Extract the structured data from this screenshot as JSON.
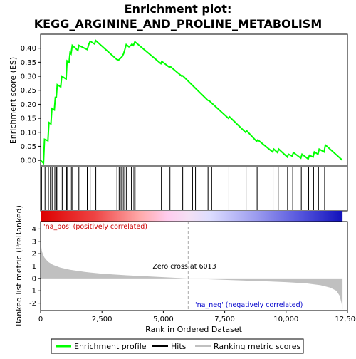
{
  "title_line1": "Enrichment plot:",
  "title_line2": "KEGG_ARGININE_AND_PROLINE_METABOLISM",
  "chart_data": {
    "type": "line",
    "es_panel": {
      "ylabel": "Enrichment score (ES)",
      "ylim": [
        -0.02,
        0.45
      ],
      "yticks": [
        0.0,
        0.05,
        0.1,
        0.15,
        0.2,
        0.25,
        0.3,
        0.35,
        0.4
      ],
      "ytick_labels": [
        "0.00",
        "0.05",
        "0.10",
        "0.15",
        "0.20",
        "0.25",
        "0.30",
        "0.35",
        "0.40"
      ],
      "series_name": "Enrichment profile",
      "color": "#00ff00",
      "points": [
        [
          0,
          0.0
        ],
        [
          120,
          -0.01
        ],
        [
          160,
          0.075
        ],
        [
          300,
          0.07
        ],
        [
          340,
          0.135
        ],
        [
          420,
          0.13
        ],
        [
          460,
          0.185
        ],
        [
          560,
          0.18
        ],
        [
          600,
          0.225
        ],
        [
          640,
          0.225
        ],
        [
          680,
          0.27
        ],
        [
          820,
          0.262
        ],
        [
          860,
          0.3
        ],
        [
          1040,
          0.29
        ],
        [
          1080,
          0.355
        ],
        [
          1160,
          0.35
        ],
        [
          1200,
          0.385
        ],
        [
          1240,
          0.38
        ],
        [
          1290,
          0.41
        ],
        [
          1520,
          0.392
        ],
        [
          1560,
          0.41
        ],
        [
          1900,
          0.395
        ],
        [
          1960,
          0.413
        ],
        [
          2020,
          0.425
        ],
        [
          2200,
          0.415
        ],
        [
          2240,
          0.428
        ],
        [
          3100,
          0.36
        ],
        [
          3180,
          0.358
        ],
        [
          3260,
          0.365
        ],
        [
          3320,
          0.37
        ],
        [
          3380,
          0.38
        ],
        [
          3430,
          0.395
        ],
        [
          3490,
          0.413
        ],
        [
          3600,
          0.405
        ],
        [
          3680,
          0.41
        ],
        [
          3720,
          0.415
        ],
        [
          3780,
          0.41
        ],
        [
          3840,
          0.423
        ],
        [
          4900,
          0.345
        ],
        [
          4940,
          0.353
        ],
        [
          5250,
          0.332
        ],
        [
          5280,
          0.335
        ],
        [
          5750,
          0.3
        ],
        [
          5790,
          0.302
        ],
        [
          6180,
          0.268
        ],
        [
          6300,
          0.258
        ],
        [
          6800,
          0.215
        ],
        [
          6880,
          0.212
        ],
        [
          6960,
          0.205
        ],
        [
          7650,
          0.15
        ],
        [
          7700,
          0.155
        ],
        [
          8350,
          0.1
        ],
        [
          8400,
          0.105
        ],
        [
          8800,
          0.068
        ],
        [
          8850,
          0.073
        ],
        [
          9450,
          0.03
        ],
        [
          9500,
          0.04
        ],
        [
          9650,
          0.028
        ],
        [
          9700,
          0.04
        ],
        [
          10050,
          0.012
        ],
        [
          10100,
          0.022
        ],
        [
          10250,
          0.015
        ],
        [
          10300,
          0.028
        ],
        [
          10600,
          0.008
        ],
        [
          10650,
          0.022
        ],
        [
          10900,
          0.005
        ],
        [
          10950,
          0.018
        ],
        [
          11100,
          0.012
        ],
        [
          11150,
          0.03
        ],
        [
          11300,
          0.022
        ],
        [
          11350,
          0.04
        ],
        [
          11550,
          0.03
        ],
        [
          11600,
          0.055
        ],
        [
          12300,
          0.0
        ]
      ]
    },
    "hits": [
      40,
      180,
      320,
      400,
      470,
      580,
      650,
      700,
      880,
      1060,
      1100,
      1210,
      1270,
      1310,
      1560,
      1900,
      2020,
      2250,
      3110,
      3200,
      3280,
      3330,
      3390,
      3440,
      3500,
      3640,
      3700,
      3800,
      3850,
      4920,
      5270,
      5760,
      5790,
      6190,
      6310,
      6820,
      6970,
      7670,
      8370,
      8820,
      9470,
      9680,
      10060,
      10270,
      10620,
      10920,
      11120,
      11320,
      11570
    ],
    "metric_panel": {
      "ylabel": "Ranked list metric (PreRanked)",
      "xlabel": "Rank in Ordered Dataset",
      "ylim": [
        -2.6,
        4.6
      ],
      "yticks": [
        -2,
        -1,
        0,
        1,
        2,
        3,
        4
      ],
      "xlim": [
        0,
        12500
      ],
      "xticks": [
        0,
        2500,
        5000,
        7500,
        10000,
        12500
      ],
      "xtick_labels": [
        "0",
        "2,500",
        "5,000",
        "7,500",
        "10,000",
        "12,500"
      ],
      "zero_cross": 6013,
      "zero_cross_label": "Zero cross at 6013",
      "pos_label": "'na_pos' (positively correlated)",
      "neg_label": "'na_neg' (negatively correlated)",
      "n_genes": 12300,
      "profile": [
        [
          0,
          3.0
        ],
        [
          50,
          2.2
        ],
        [
          150,
          1.7
        ],
        [
          300,
          1.35
        ],
        [
          500,
          1.1
        ],
        [
          800,
          0.88
        ],
        [
          1200,
          0.7
        ],
        [
          1800,
          0.52
        ],
        [
          2500,
          0.38
        ],
        [
          3500,
          0.25
        ],
        [
          4500,
          0.15
        ],
        [
          5500,
          0.05
        ],
        [
          6013,
          0.0
        ],
        [
          7000,
          -0.08
        ],
        [
          8000,
          -0.15
        ],
        [
          9000,
          -0.22
        ],
        [
          10000,
          -0.3
        ],
        [
          10800,
          -0.4
        ],
        [
          11400,
          -0.55
        ],
        [
          11800,
          -0.75
        ],
        [
          12050,
          -1.0
        ],
        [
          12180,
          -1.4
        ],
        [
          12260,
          -2.0
        ],
        [
          12300,
          -2.5
        ]
      ]
    },
    "legend": {
      "items": [
        {
          "label": "Enrichment profile",
          "color": "#00ff00"
        },
        {
          "label": "Hits",
          "color": "#000000"
        },
        {
          "label": "Ranking metric scores",
          "color": "#c0c0c0"
        }
      ]
    }
  }
}
